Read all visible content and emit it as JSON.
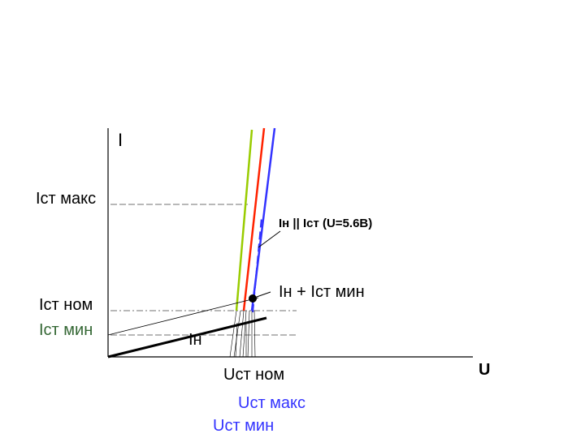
{
  "axes": {
    "y_label": "I",
    "x_label": "U"
  },
  "left_labels": {
    "ist_max": "Iст макс",
    "ist_nom": "Iст ном",
    "ist_min": "Iст мин"
  },
  "annotations": {
    "parallel": "Iн || Iст (U=5.6В)",
    "sum": "Iн + Iст мин",
    "load": "Iн"
  },
  "bottom_labels": {
    "u_nom": "Uст ном",
    "u_max": "Uст макс",
    "u_min": "Uст мин"
  },
  "colors": {
    "axis": "#000000",
    "min_curve": "#99cc00",
    "nom_curve": "#ff2200",
    "max_curve": "#3333ff",
    "dashed_curve": "#3333ff",
    "ist_min_label": "#336633",
    "u_max_label": "#3333ff",
    "u_min_label": "#3333ff"
  }
}
